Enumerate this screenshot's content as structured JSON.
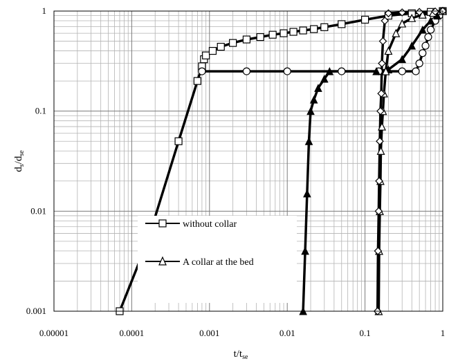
{
  "chart_data": {
    "type": "line",
    "xscale": "log",
    "yscale": "log",
    "xlim": [
      1e-05,
      1
    ],
    "ylim": [
      0.001,
      1
    ],
    "grid": true,
    "legend_position": "bottom-left",
    "x_ticks": [
      {
        "value": 1e-05,
        "label": "0.00001"
      },
      {
        "value": 0.0001,
        "label": "0.0001"
      },
      {
        "value": 0.001,
        "label": "0.001"
      },
      {
        "value": 0.01,
        "label": "0.01"
      },
      {
        "value": 0.1,
        "label": "0.1"
      },
      {
        "value": 1,
        "label": "1"
      }
    ],
    "y_ticks": [
      {
        "value": 0.001,
        "label": "0.001"
      },
      {
        "value": 0.01,
        "label": "0.01"
      },
      {
        "value": 0.1,
        "label": "0.1"
      },
      {
        "value": 1,
        "label": "1"
      }
    ],
    "xlabel": {
      "main": "t/t",
      "sub": "se"
    },
    "ylabel": {
      "main": "d",
      "sub1": "s",
      "mid": "/d",
      "sub2": "se"
    },
    "series": [
      {
        "name": "without collar",
        "marker": "square",
        "x": [
          7e-05,
          0.00016,
          0.0004,
          0.0007,
          0.0008,
          0.00085,
          0.0009,
          0.0011,
          0.0014,
          0.002,
          0.003,
          0.0045,
          0.0065,
          0.009,
          0.012,
          0.016,
          0.022,
          0.03,
          0.05,
          0.1,
          0.2,
          0.4,
          0.7,
          1
        ],
        "y": [
          0.001,
          0.005,
          0.05,
          0.2,
          0.28,
          0.33,
          0.36,
          0.4,
          0.44,
          0.48,
          0.52,
          0.55,
          0.58,
          0.6,
          0.62,
          0.64,
          0.66,
          0.69,
          0.74,
          0.82,
          0.9,
          0.95,
          0.98,
          1
        ]
      },
      {
        "name": "",
        "marker": "circle",
        "x": [
          0.0008,
          0.003,
          0.01,
          0.05,
          0.15,
          0.3,
          0.45,
          0.5,
          0.55,
          0.6,
          0.65,
          0.7,
          0.8,
          0.9,
          1
        ],
        "y": [
          0.25,
          0.25,
          0.25,
          0.25,
          0.25,
          0.25,
          0.25,
          0.3,
          0.38,
          0.45,
          0.55,
          0.65,
          0.8,
          0.9,
          1
        ]
      },
      {
        "name": "",
        "marker": "triangle-filled",
        "x": [
          0.016,
          0.017,
          0.018,
          0.019,
          0.02,
          0.022,
          0.025,
          0.03,
          0.035,
          0.14,
          0.2,
          0.3,
          0.4,
          0.55,
          0.7,
          0.85,
          1
        ],
        "y": [
          0.001,
          0.004,
          0.015,
          0.05,
          0.1,
          0.13,
          0.17,
          0.21,
          0.25,
          0.25,
          0.26,
          0.33,
          0.45,
          0.65,
          0.8,
          0.9,
          1
        ]
      },
      {
        "name": "A collar at the bed",
        "marker": "triangle-open",
        "x": [
          0.15,
          0.152,
          0.155,
          0.158,
          0.16,
          0.165,
          0.17,
          0.175,
          0.185,
          0.2,
          0.25,
          0.3,
          0.4,
          0.55,
          0.75,
          1
        ],
        "y": [
          0.001,
          0.004,
          0.01,
          0.02,
          0.04,
          0.07,
          0.1,
          0.15,
          0.25,
          0.4,
          0.6,
          0.75,
          0.85,
          0.92,
          0.96,
          1
        ]
      },
      {
        "name": "",
        "marker": "diamond",
        "x": [
          0.145,
          0.147,
          0.15,
          0.152,
          0.155,
          0.158,
          0.162,
          0.165,
          0.17,
          0.18,
          0.2,
          0.3,
          0.5,
          0.8,
          1
        ],
        "y": [
          0.001,
          0.004,
          0.01,
          0.02,
          0.05,
          0.1,
          0.15,
          0.3,
          0.5,
          0.8,
          0.95,
          0.97,
          0.98,
          0.99,
          1
        ]
      }
    ]
  }
}
